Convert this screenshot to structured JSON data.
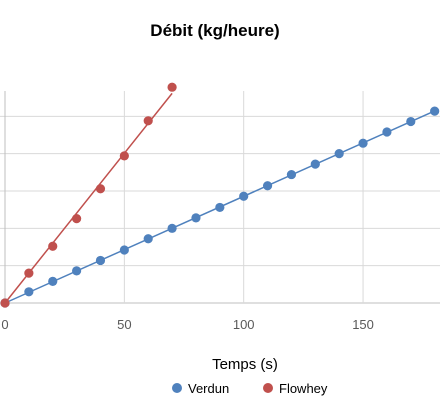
{
  "chart_data": {
    "type": "scatter",
    "title": "Débit (kg/heure)",
    "xlabel": "Temps (s)",
    "ylabel": "",
    "xlim": [
      0,
      180
    ],
    "x_ticks": [
      0,
      50,
      100,
      150
    ],
    "ylim": [
      0,
      300
    ],
    "y_gridlines": [
      0,
      50,
      100,
      150,
      200,
      250
    ],
    "grid": true,
    "legend_position": "bottom",
    "series": [
      {
        "name": "Verdun",
        "color": "#4f81bd",
        "trendline": true,
        "x": [
          0,
          10,
          20,
          30,
          40,
          50,
          60,
          70,
          80,
          90,
          100,
          110,
          120,
          130,
          140,
          150,
          160,
          170,
          180
        ],
        "y": [
          0,
          15,
          29,
          43,
          57,
          71,
          86,
          100,
          114,
          128,
          143,
          157,
          172,
          186,
          200,
          214,
          229,
          243,
          257
        ]
      },
      {
        "name": "Flowhey",
        "color": "#c0504d",
        "trendline": true,
        "x": [
          0,
          10,
          20,
          30,
          40,
          50,
          60,
          70
        ],
        "y": [
          0,
          40,
          76,
          113,
          153,
          197,
          244,
          289
        ]
      }
    ]
  }
}
